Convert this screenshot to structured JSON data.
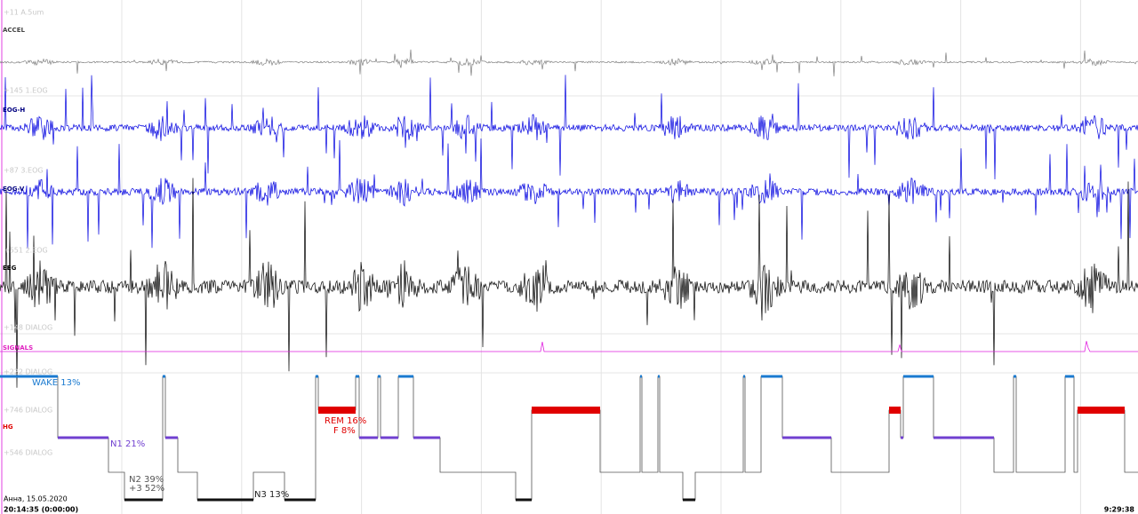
{
  "channels": [
    "ACCEL",
    "EOG-H",
    "EOG-V",
    "EEG",
    "SIGNALS",
    "HG"
  ],
  "scale_labels": [
    "+11 A.5um",
    "+145 1.EOG",
    "+87 3.EOG",
    "+551 2.EOG",
    "+148 DIALOG",
    "+222 DIALOG",
    "+746 DIALOG",
    "+546 DIALOG"
  ],
  "stages": {
    "wake": "WAKE 13%",
    "n1": "N1 21%",
    "n2": "N2 39%",
    "n23": "+3 52%",
    "n3": "N3 13%",
    "rem": "REM 16%",
    "f": "F 8%"
  },
  "footer": {
    "patient": "Анна, 15.05.2020",
    "start": "20:14:35 (0:00:00)",
    "end": "9:29:38"
  }
}
